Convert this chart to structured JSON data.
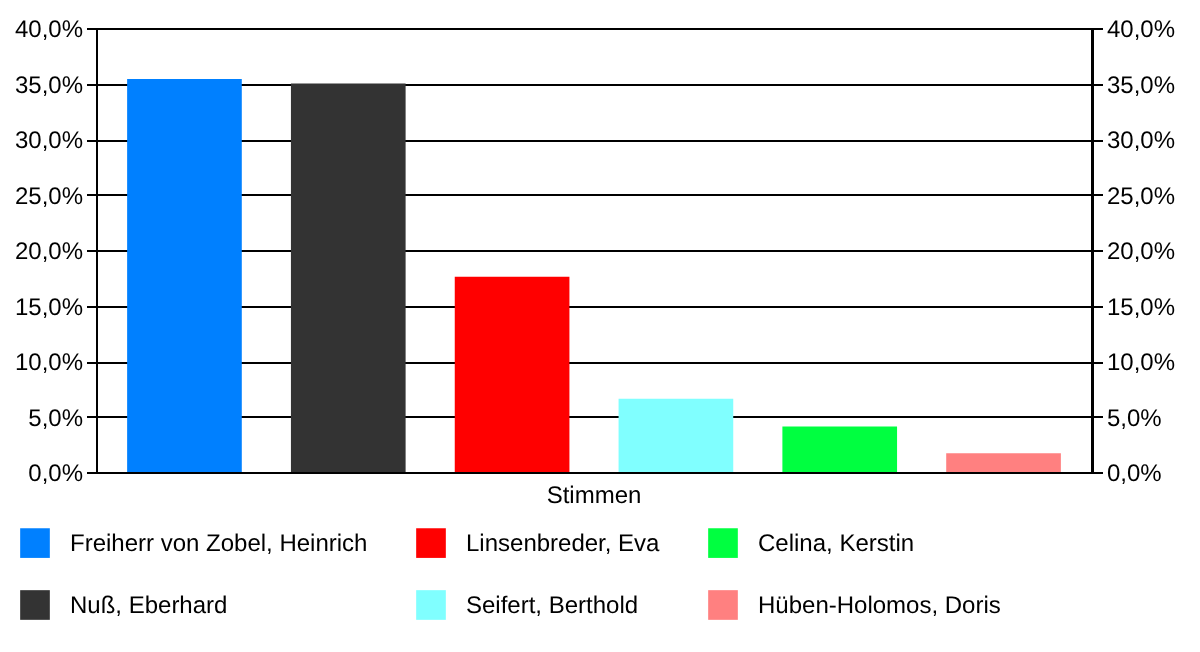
{
  "chart_data": {
    "type": "bar",
    "categories": [
      "Stimmen"
    ],
    "series": [
      {
        "name": "Freiherr von Zobel, Heinrich",
        "color": "#0080ff",
        "values": [
          35.4
        ]
      },
      {
        "name": "Nuß, Eberhard",
        "color": "#333333",
        "values": [
          35.0
        ]
      },
      {
        "name": "Linsenbreder, Eva",
        "color": "#ff0000",
        "values": [
          17.6
        ]
      },
      {
        "name": "Seifert, Berthold",
        "color": "#80ffff",
        "values": [
          6.6
        ]
      },
      {
        "name": "Celina, Kerstin",
        "color": "#00ff40",
        "values": [
          4.1
        ]
      },
      {
        "name": "Hüben-Holomos, Doris",
        "color": "#ff8080",
        "values": [
          1.7
        ]
      }
    ],
    "ylim": [
      0,
      40
    ],
    "yticks": [
      {
        "value": 0,
        "label": "0,0%"
      },
      {
        "value": 5,
        "label": "5,0%"
      },
      {
        "value": 10,
        "label": "10,0%"
      },
      {
        "value": 15,
        "label": "15,0%"
      },
      {
        "value": 20,
        "label": "20,0%"
      },
      {
        "value": 25,
        "label": "25,0%"
      },
      {
        "value": 30,
        "label": "30,0%"
      },
      {
        "value": 35,
        "label": "35,0%"
      },
      {
        "value": 40,
        "label": "40,0%"
      }
    ],
    "grid": "y",
    "legend": "bottom"
  }
}
